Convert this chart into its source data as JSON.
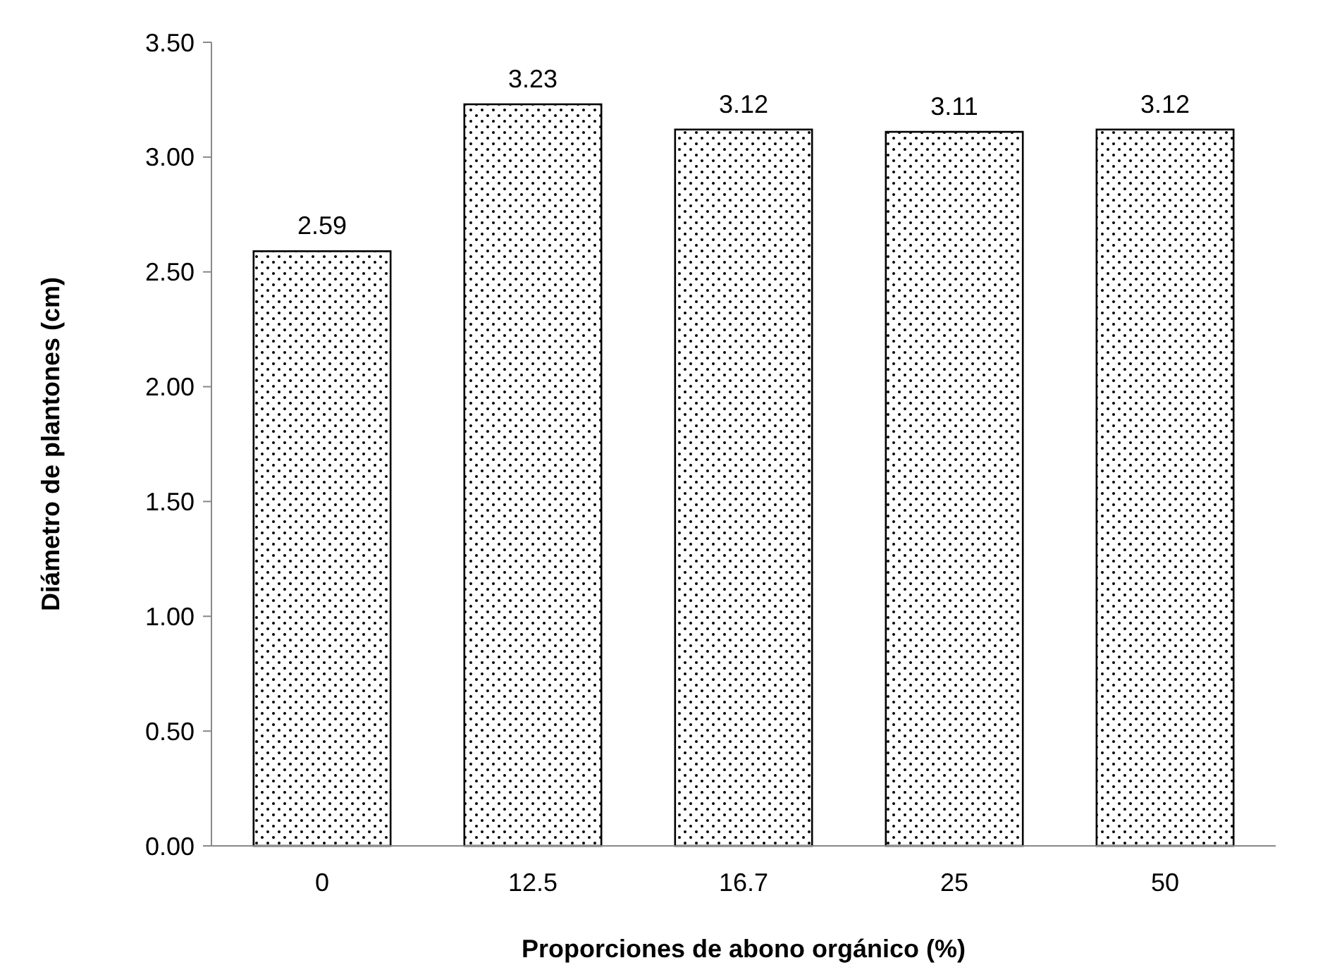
{
  "chart_data": {
    "type": "bar",
    "xlabel": "Proporciones de abono orgánico (%)",
    "ylabel": "Diámetro de plantones (cm)",
    "categories": [
      "0",
      "12.5",
      "16.7",
      "25",
      "50"
    ],
    "values": [
      2.59,
      3.23,
      3.12,
      3.11,
      3.12
    ],
    "color": "#000000",
    "ylim": [
      0,
      3.5
    ],
    "yticks": [
      {
        "value": 0,
        "label": "0.00"
      },
      {
        "value": 0.5,
        "label": "0.50"
      },
      {
        "value": 1,
        "label": "1.00"
      },
      {
        "value": 1.5,
        "label": "1.50"
      },
      {
        "value": 2,
        "label": "2.00"
      },
      {
        "value": 2.5,
        "label": "2.50"
      },
      {
        "value": 3,
        "label": "3.00"
      },
      {
        "value": 3.5,
        "label": "3.50"
      }
    ],
    "data_labels": true,
    "grid": false
  }
}
